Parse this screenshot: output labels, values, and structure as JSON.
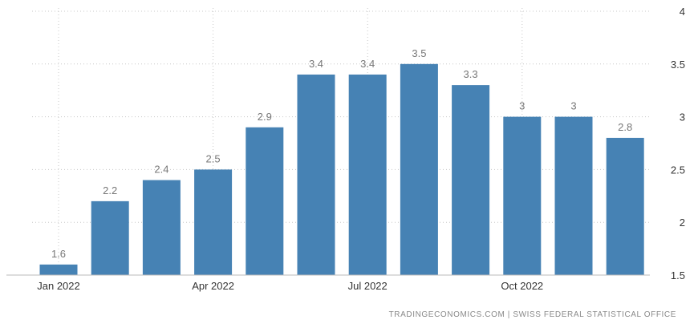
{
  "chart_data": {
    "type": "bar",
    "categories": [
      "Jan 2022",
      "Feb 2022",
      "Mar 2022",
      "Apr 2022",
      "May 2022",
      "Jun 2022",
      "Jul 2022",
      "Aug 2022",
      "Sep 2022",
      "Oct 2022",
      "Nov 2022",
      "Dec 2022"
    ],
    "values": [
      1.6,
      2.2,
      2.4,
      2.5,
      2.9,
      3.4,
      3.4,
      3.5,
      3.3,
      3,
      3,
      2.8
    ],
    "x_tick_labels": [
      {
        "index": 0,
        "label": "Jan 2022"
      },
      {
        "index": 3,
        "label": "Apr 2022"
      },
      {
        "index": 6,
        "label": "Jul 2022"
      },
      {
        "index": 9,
        "label": "Oct 2022"
      }
    ],
    "y_ticks": [
      1.5,
      2,
      2.5,
      3,
      3.5,
      4
    ],
    "ylim": [
      1.5,
      4
    ],
    "y_axis_side": "right",
    "grid": "dotted",
    "bar_color": "#4682b4",
    "label_color": "#777777",
    "title": "",
    "xlabel": "",
    "ylabel": ""
  },
  "source": "TRADINGECONOMICS.COM | SWISS FEDERAL STATISTICAL OFFICE"
}
